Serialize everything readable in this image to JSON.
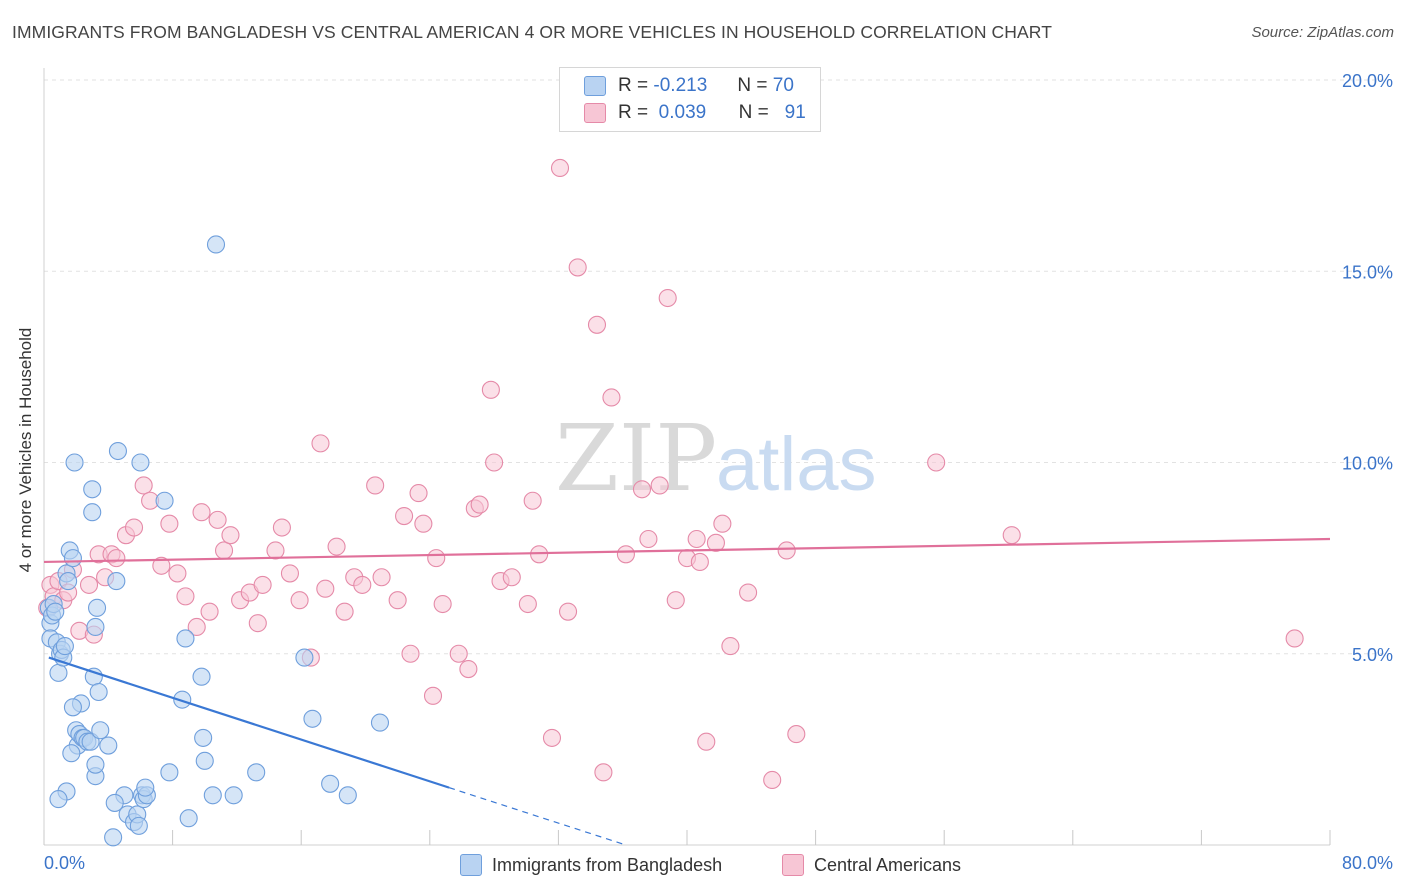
{
  "header": {
    "title": "IMMIGRANTS FROM BANGLADESH VS CENTRAL AMERICAN 4 OR MORE VEHICLES IN HOUSEHOLD CORRELATION CHART",
    "source": "Source: ZipAtlas.com"
  },
  "watermark": {
    "zip": "ZIP",
    "atlas": "atlas"
  },
  "legend_top": {
    "rows": [
      {
        "r_label": "R =",
        "r_value": "-0.213",
        "n_label": "N =",
        "n_value": "70"
      },
      {
        "r_label": "R =",
        "r_value": "0.039",
        "n_label": "N =",
        "n_value": "91"
      }
    ]
  },
  "legend_bottom": {
    "series1": "Immigrants from Bangladesh",
    "series2": "Central Americans"
  },
  "colors": {
    "blue_fill": "#b9d3f2",
    "blue_stroke": "#6f9fdc",
    "blue_line": "#3a78d4",
    "pink_fill": "#f7c6d5",
    "pink_stroke": "#e58aa8",
    "pink_line": "#e0709a",
    "tick_label": "#3b74c9",
    "grid": "#e2e2e2"
  },
  "chart_data": {
    "type": "scatter",
    "title": "IMMIGRANTS FROM BANGLADESH VS CENTRAL AMERICAN 4 OR MORE VEHICLES IN HOUSEHOLD CORRELATION CHART",
    "xlabel": "",
    "ylabel": "4 or more Vehicles in Household",
    "xlim": [
      0,
      80
    ],
    "ylim": [
      0,
      20
    ],
    "x_tick_labels": [
      "0.0%",
      "80.0%"
    ],
    "y_ticks": [
      5,
      10,
      15,
      20
    ],
    "y_tick_labels": [
      "5.0%",
      "10.0%",
      "15.0%",
      "20.0%"
    ],
    "grid": true,
    "legend_position": "bottom",
    "series": [
      {
        "name": "Immigrants from Bangladesh",
        "r": -0.213,
        "n": 70,
        "trend": {
          "x1": 0.3,
          "y1": 4.9,
          "x2": 25.2,
          "y2": 1.5,
          "dash_to_x": 36.2,
          "dash_to_y": 0.0
        },
        "points": [
          [
            0.3,
            6.2
          ],
          [
            0.4,
            5.8
          ],
          [
            0.5,
            6.0
          ],
          [
            0.6,
            6.3
          ],
          [
            0.7,
            6.1
          ],
          [
            0.4,
            5.4
          ],
          [
            0.8,
            5.3
          ],
          [
            0.9,
            4.5
          ],
          [
            1.0,
            5.0
          ],
          [
            1.1,
            5.1
          ],
          [
            1.2,
            4.9
          ],
          [
            1.3,
            5.2
          ],
          [
            1.4,
            7.1
          ],
          [
            1.5,
            6.9
          ],
          [
            1.6,
            7.7
          ],
          [
            1.8,
            7.5
          ],
          [
            1.9,
            10.0
          ],
          [
            2.0,
            3.0
          ],
          [
            2.1,
            2.6
          ],
          [
            2.2,
            2.9
          ],
          [
            2.3,
            3.7
          ],
          [
            2.4,
            2.8
          ],
          [
            2.5,
            2.8
          ],
          [
            2.7,
            2.7
          ],
          [
            2.9,
            2.7
          ],
          [
            3.0,
            9.3
          ],
          [
            3.0,
            8.7
          ],
          [
            3.1,
            4.4
          ],
          [
            3.2,
            5.7
          ],
          [
            3.3,
            6.2
          ],
          [
            3.4,
            4.0
          ],
          [
            3.5,
            3.0
          ],
          [
            4.0,
            2.6
          ],
          [
            4.5,
            6.9
          ],
          [
            4.6,
            10.3
          ],
          [
            5.0,
            1.3
          ],
          [
            5.2,
            0.8
          ],
          [
            5.6,
            0.6
          ],
          [
            5.8,
            0.8
          ],
          [
            5.9,
            0.5
          ],
          [
            6.1,
            1.3
          ],
          [
            6.2,
            1.2
          ],
          [
            6.4,
            1.3
          ],
          [
            4.3,
            0.2
          ],
          [
            4.4,
            1.1
          ],
          [
            3.2,
            1.8
          ],
          [
            3.2,
            2.1
          ],
          [
            6.3,
            1.5
          ],
          [
            6.0,
            10.0
          ],
          [
            7.5,
            9.0
          ],
          [
            7.8,
            1.9
          ],
          [
            8.6,
            3.8
          ],
          [
            8.8,
            5.4
          ],
          [
            9.0,
            0.7
          ],
          [
            9.8,
            4.4
          ],
          [
            9.9,
            2.8
          ],
          [
            10.0,
            2.2
          ],
          [
            10.5,
            1.3
          ],
          [
            11.8,
            1.3
          ],
          [
            13.2,
            1.9
          ],
          [
            10.7,
            15.7
          ],
          [
            16.2,
            4.9
          ],
          [
            16.7,
            3.3
          ],
          [
            17.8,
            1.6
          ],
          [
            18.9,
            1.3
          ],
          [
            20.9,
            3.2
          ],
          [
            1.7,
            2.4
          ],
          [
            1.8,
            3.6
          ],
          [
            1.4,
            1.4
          ],
          [
            0.9,
            1.2
          ]
        ]
      },
      {
        "name": "Central Americans",
        "r": 0.039,
        "n": 91,
        "trend": {
          "x1": 0.0,
          "y1": 7.4,
          "x2": 80.0,
          "y2": 8.0
        },
        "points": [
          [
            0.2,
            6.2
          ],
          [
            0.4,
            6.8
          ],
          [
            0.6,
            6.5
          ],
          [
            0.9,
            6.9
          ],
          [
            1.2,
            6.4
          ],
          [
            1.5,
            6.6
          ],
          [
            1.8,
            7.2
          ],
          [
            2.2,
            5.6
          ],
          [
            2.8,
            6.8
          ],
          [
            3.1,
            5.5
          ],
          [
            3.4,
            7.6
          ],
          [
            3.8,
            7.0
          ],
          [
            4.2,
            7.6
          ],
          [
            4.5,
            7.5
          ],
          [
            5.1,
            8.1
          ],
          [
            5.6,
            8.3
          ],
          [
            6.2,
            9.4
          ],
          [
            6.6,
            9.0
          ],
          [
            7.3,
            7.3
          ],
          [
            7.8,
            8.4
          ],
          [
            8.3,
            7.1
          ],
          [
            8.8,
            6.5
          ],
          [
            9.5,
            5.7
          ],
          [
            9.8,
            8.7
          ],
          [
            10.3,
            6.1
          ],
          [
            10.8,
            8.5
          ],
          [
            11.2,
            7.7
          ],
          [
            11.6,
            8.1
          ],
          [
            12.2,
            6.4
          ],
          [
            12.8,
            6.6
          ],
          [
            13.3,
            5.8
          ],
          [
            13.6,
            6.8
          ],
          [
            14.4,
            7.7
          ],
          [
            14.8,
            8.3
          ],
          [
            15.3,
            7.1
          ],
          [
            15.9,
            6.4
          ],
          [
            16.6,
            4.9
          ],
          [
            17.2,
            10.5
          ],
          [
            17.5,
            6.7
          ],
          [
            18.2,
            7.8
          ],
          [
            18.7,
            6.1
          ],
          [
            19.3,
            7.0
          ],
          [
            19.8,
            6.8
          ],
          [
            20.6,
            9.4
          ],
          [
            21.0,
            7.0
          ],
          [
            22.0,
            6.4
          ],
          [
            22.4,
            8.6
          ],
          [
            22.8,
            5.0
          ],
          [
            23.3,
            9.2
          ],
          [
            23.6,
            8.4
          ],
          [
            24.2,
            3.9
          ],
          [
            24.4,
            7.5
          ],
          [
            24.8,
            6.3
          ],
          [
            25.8,
            5.0
          ],
          [
            26.4,
            4.6
          ],
          [
            26.8,
            8.8
          ],
          [
            27.1,
            8.9
          ],
          [
            27.8,
            11.9
          ],
          [
            28.0,
            10.0
          ],
          [
            28.4,
            6.9
          ],
          [
            29.1,
            7.0
          ],
          [
            30.1,
            6.3
          ],
          [
            30.4,
            9.0
          ],
          [
            30.8,
            7.6
          ],
          [
            31.6,
            2.8
          ],
          [
            32.1,
            17.7
          ],
          [
            32.6,
            6.1
          ],
          [
            33.2,
            15.1
          ],
          [
            34.4,
            13.6
          ],
          [
            34.8,
            1.9
          ],
          [
            35.3,
            11.7
          ],
          [
            36.2,
            7.6
          ],
          [
            37.2,
            9.3
          ],
          [
            37.6,
            8.0
          ],
          [
            38.3,
            9.4
          ],
          [
            38.8,
            14.3
          ],
          [
            39.3,
            6.4
          ],
          [
            40.0,
            7.5
          ],
          [
            40.6,
            8.0
          ],
          [
            40.8,
            7.4
          ],
          [
            41.2,
            2.7
          ],
          [
            41.8,
            7.9
          ],
          [
            42.2,
            8.4
          ],
          [
            42.7,
            5.2
          ],
          [
            43.8,
            6.6
          ],
          [
            45.3,
            1.7
          ],
          [
            46.2,
            7.7
          ],
          [
            46.8,
            2.9
          ],
          [
            55.5,
            10.0
          ],
          [
            60.2,
            8.1
          ],
          [
            77.8,
            5.4
          ]
        ]
      }
    ]
  }
}
